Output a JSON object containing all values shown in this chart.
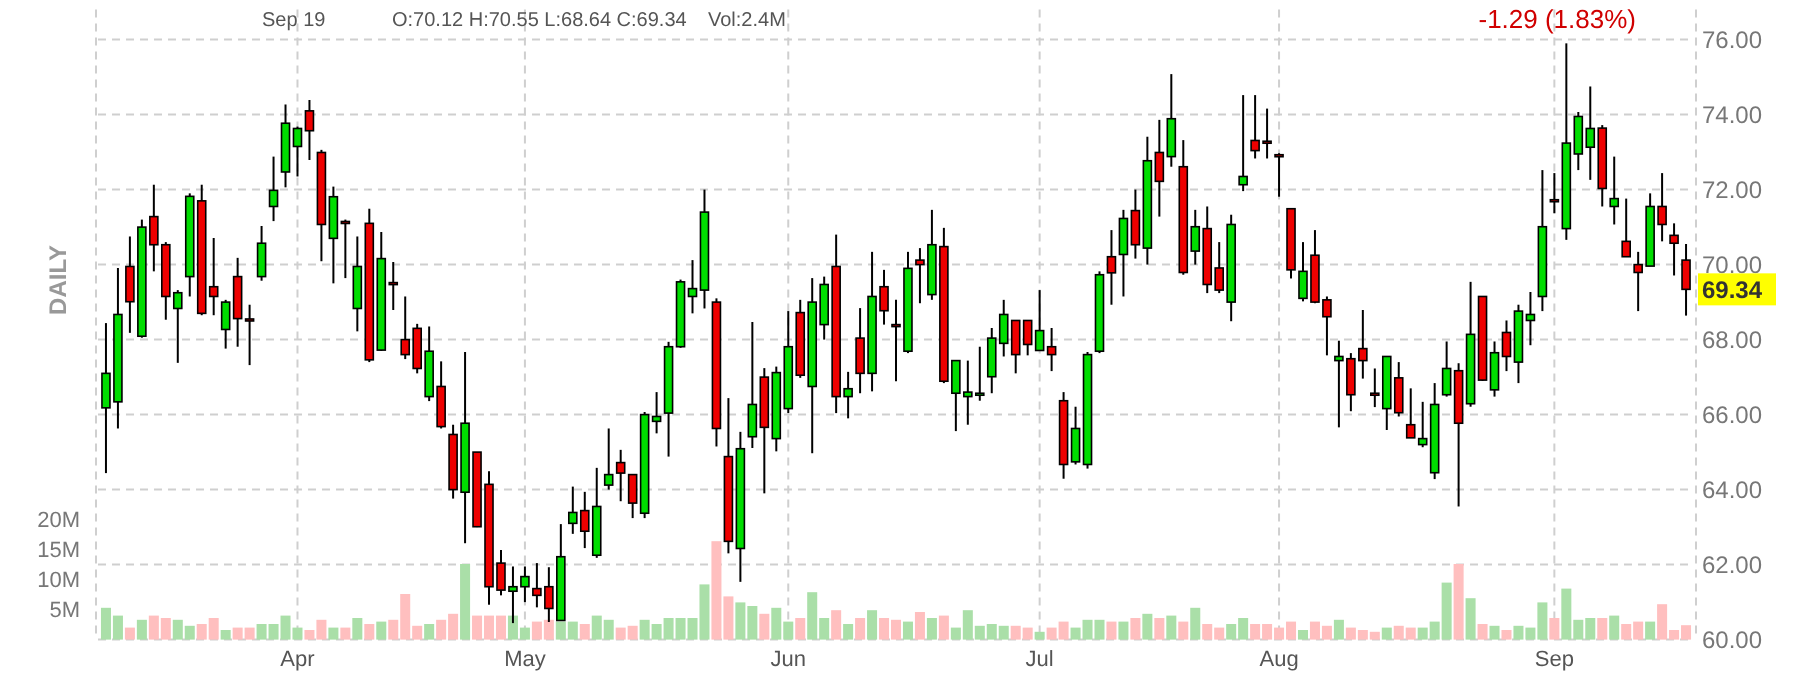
{
  "chart_data": {
    "type": "candlestick",
    "grid": true,
    "categories": [
      null,
      null,
      null,
      null,
      null,
      null,
      null,
      null,
      null,
      null,
      null,
      null,
      null,
      null,
      null,
      null,
      "Apr",
      null,
      null,
      null,
      null,
      null,
      null,
      null,
      null,
      null,
      null,
      null,
      null,
      null,
      null,
      null,
      null,
      null,
      null,
      "May",
      null,
      null,
      null,
      null,
      null,
      null,
      null,
      null,
      null,
      null,
      null,
      null,
      null,
      null,
      null,
      null,
      null,
      null,
      null,
      null,
      null,
      "Jun",
      null,
      null,
      null,
      null,
      null,
      null,
      null,
      null,
      null,
      null,
      null,
      null,
      null,
      null,
      null,
      null,
      null,
      null,
      null,
      null,
      "Jul",
      null,
      null,
      null,
      null,
      null,
      null,
      null,
      null,
      null,
      null,
      null,
      null,
      null,
      null,
      null,
      null,
      null,
      null,
      null,
      "Aug",
      null,
      null,
      null,
      null,
      null,
      null,
      null,
      null,
      null,
      null,
      null,
      null,
      null,
      null,
      null,
      null,
      null,
      null,
      null,
      null,
      null,
      null,
      "Sep",
      null,
      null,
      null,
      null,
      null,
      null,
      null,
      null,
      null,
      null,
      null
    ],
    "ylim": [
      60,
      76
    ],
    "yticks": [
      {
        "value": 60,
        "label": "60.00"
      },
      {
        "value": 62,
        "label": "62.00"
      },
      {
        "value": 64,
        "label": "64.00"
      },
      {
        "value": 66,
        "label": "66.00"
      },
      {
        "value": 68,
        "label": "68.00"
      },
      {
        "value": 70,
        "label": "70.00"
      },
      {
        "value": 72,
        "label": "72.00"
      },
      {
        "value": 74,
        "label": "74.00"
      },
      {
        "value": 76,
        "label": "76.00"
      }
    ],
    "y2lim": [
      0,
      100
    ],
    "y2ticks": [
      {
        "value": 5,
        "label": "5M"
      },
      {
        "value": 10,
        "label": "10M"
      },
      {
        "value": 15,
        "label": "15M"
      },
      {
        "value": 20,
        "label": "20M"
      }
    ],
    "annotations": [
      "Sep 19",
      "O:70.12 H:70.55 L:68.64 C:69.34",
      "Vol:2.4M",
      "-1.29 (1.83%)",
      "DAILY",
      "69.34"
    ],
    "series": [
      {
        "ohlc": [
          [
            66.18,
            68.44,
            64.44,
            67.1
          ],
          [
            66.34,
            69.91,
            65.63,
            68.67
          ],
          [
            69.95,
            70.75,
            68.18,
            69.01
          ],
          [
            68.09,
            71.2,
            68.05,
            71.0
          ],
          [
            71.28,
            72.13,
            69.82,
            70.53
          ],
          [
            70.53,
            70.6,
            68.53,
            69.15
          ],
          [
            68.83,
            69.32,
            67.38,
            69.25
          ],
          [
            69.68,
            71.9,
            69.15,
            71.82
          ],
          [
            71.7,
            72.13,
            68.65,
            68.7
          ],
          [
            69.41,
            70.71,
            68.65,
            69.15
          ],
          [
            68.27,
            69.06,
            67.76,
            69.0
          ],
          [
            69.68,
            70.18,
            67.81,
            68.56
          ],
          [
            68.55,
            68.93,
            67.32,
            68.5
          ],
          [
            69.68,
            71.03,
            69.57,
            70.57
          ],
          [
            71.55,
            72.88,
            71.16,
            71.98
          ],
          [
            72.47,
            74.27,
            72.06,
            73.77
          ],
          [
            73.15,
            73.68,
            72.35,
            73.63
          ],
          [
            74.1,
            74.39,
            72.79,
            73.57
          ],
          [
            72.99,
            73.06,
            70.09,
            71.07
          ],
          [
            70.7,
            72.08,
            69.5,
            71.81
          ],
          [
            71.15,
            71.2,
            69.64,
            71.12
          ],
          [
            68.83,
            70.75,
            68.22,
            69.95
          ],
          [
            71.1,
            71.49,
            67.4,
            67.46
          ],
          [
            67.72,
            70.87,
            67.7,
            70.16
          ],
          [
            69.52,
            70.07,
            68.79,
            69.48
          ],
          [
            68.0,
            69.15,
            67.48,
            67.6
          ],
          [
            68.3,
            68.42,
            67.1,
            67.23
          ],
          [
            66.48,
            68.35,
            66.36,
            67.69
          ],
          [
            66.75,
            67.42,
            65.63,
            65.68
          ],
          [
            65.47,
            65.73,
            63.76,
            64.0
          ],
          [
            63.93,
            67.67,
            62.57,
            65.77
          ],
          [
            65.0,
            65.0,
            63.0,
            63.01
          ],
          [
            64.14,
            64.49,
            60.93,
            61.41
          ],
          [
            62.04,
            62.39,
            61.18,
            61.32
          ],
          [
            61.29,
            61.95,
            60.44,
            61.41
          ],
          [
            61.41,
            61.95,
            61.0,
            61.68
          ],
          [
            61.36,
            62.04,
            60.86,
            61.18
          ],
          [
            61.41,
            61.93,
            60.47,
            60.83
          ],
          [
            60.51,
            63.08,
            60.5,
            62.21
          ],
          [
            63.1,
            64.08,
            62.82,
            63.39
          ],
          [
            63.44,
            63.94,
            62.44,
            62.89
          ],
          [
            62.25,
            64.58,
            62.18,
            63.55
          ],
          [
            64.12,
            65.63,
            64.0,
            64.4
          ],
          [
            64.72,
            65.06,
            63.69,
            64.44
          ],
          [
            64.4,
            64.4,
            63.24,
            63.64
          ],
          [
            63.37,
            66.07,
            63.24,
            66.0
          ],
          [
            65.82,
            66.6,
            65.5,
            65.95
          ],
          [
            66.04,
            67.94,
            64.88,
            67.81
          ],
          [
            67.81,
            69.6,
            67.78,
            69.54
          ],
          [
            69.15,
            70.12,
            68.7,
            69.36
          ],
          [
            69.32,
            72.0,
            68.83,
            71.4
          ],
          [
            69.0,
            69.1,
            65.15,
            65.63
          ],
          [
            64.88,
            66.44,
            62.3,
            62.62
          ],
          [
            62.43,
            65.54,
            61.54,
            65.09
          ],
          [
            65.41,
            68.47,
            65.11,
            66.27
          ],
          [
            67.0,
            67.24,
            63.9,
            65.66
          ],
          [
            65.36,
            67.28,
            65.02,
            67.12
          ],
          [
            66.16,
            68.76,
            66.04,
            67.81
          ],
          [
            68.72,
            69.06,
            66.98,
            67.05
          ],
          [
            66.75,
            69.64,
            64.97,
            69.0
          ],
          [
            68.4,
            69.68,
            68.0,
            69.47
          ],
          [
            69.95,
            70.8,
            66.04,
            66.48
          ],
          [
            66.48,
            67.14,
            65.9,
            66.69
          ],
          [
            68.04,
            68.84,
            66.57,
            67.1
          ],
          [
            67.1,
            70.34,
            66.62,
            69.15
          ],
          [
            69.41,
            69.86,
            68.4,
            68.77
          ],
          [
            68.4,
            69.06,
            66.89,
            68.38
          ],
          [
            67.69,
            70.34,
            67.64,
            69.9
          ],
          [
            70.12,
            70.44,
            68.97,
            70.0
          ],
          [
            69.2,
            71.46,
            69.06,
            70.53
          ],
          [
            70.48,
            70.98,
            66.84,
            66.89
          ],
          [
            66.57,
            67.44,
            65.56,
            67.44
          ],
          [
            66.48,
            67.44,
            65.73,
            66.6
          ],
          [
            66.55,
            67.81,
            66.37,
            66.57
          ],
          [
            67.01,
            68.31,
            66.57,
            68.04
          ],
          [
            67.9,
            69.06,
            67.55,
            68.67
          ],
          [
            68.51,
            68.51,
            67.1,
            67.6
          ],
          [
            68.51,
            68.51,
            67.58,
            67.87
          ],
          [
            67.71,
            69.32,
            67.71,
            68.24
          ],
          [
            67.81,
            68.31,
            67.16,
            67.6
          ],
          [
            66.37,
            66.6,
            64.29,
            64.67
          ],
          [
            64.74,
            66.21,
            64.67,
            65.63
          ],
          [
            64.67,
            67.67,
            64.56,
            67.6
          ],
          [
            67.69,
            69.82,
            67.64,
            69.73
          ],
          [
            70.21,
            70.92,
            68.93,
            69.78
          ],
          [
            70.27,
            71.46,
            69.15,
            71.23
          ],
          [
            71.44,
            72.0,
            70.16,
            70.53
          ],
          [
            70.44,
            73.41,
            70.0,
            72.77
          ],
          [
            72.99,
            73.86,
            71.28,
            72.22
          ],
          [
            72.88,
            75.08,
            72.61,
            73.89
          ],
          [
            72.61,
            73.32,
            69.73,
            69.79
          ],
          [
            70.36,
            71.46,
            70.0,
            71.01
          ],
          [
            70.96,
            71.55,
            69.24,
            69.47
          ],
          [
            69.91,
            70.6,
            69.24,
            69.32
          ],
          [
            69.0,
            71.33,
            68.49,
            71.07
          ],
          [
            72.13,
            74.52,
            71.96,
            72.35
          ],
          [
            73.31,
            74.52,
            72.83,
            73.04
          ],
          [
            73.29,
            74.16,
            72.83,
            73.27
          ],
          [
            72.93,
            72.97,
            71.81,
            72.9
          ],
          [
            71.49,
            71.49,
            69.63,
            69.86
          ],
          [
            69.1,
            70.6,
            69.02,
            69.82
          ],
          [
            70.25,
            70.92,
            68.97,
            69.0
          ],
          [
            69.06,
            69.15,
            67.58,
            68.61
          ],
          [
            67.44,
            67.97,
            65.66,
            67.55
          ],
          [
            67.49,
            67.64,
            66.09,
            66.53
          ],
          [
            67.76,
            68.79,
            66.96,
            67.44
          ],
          [
            66.57,
            67.23,
            66.2,
            66.55
          ],
          [
            66.16,
            67.55,
            65.59,
            67.55
          ],
          [
            66.98,
            67.4,
            65.95,
            66.05
          ],
          [
            65.73,
            66.7,
            65.38,
            65.38
          ],
          [
            65.2,
            66.34,
            65.13,
            65.36
          ],
          [
            64.45,
            66.84,
            64.28,
            66.27
          ],
          [
            66.53,
            67.95,
            66.48,
            67.23
          ],
          [
            67.17,
            67.37,
            63.55,
            65.77
          ],
          [
            66.29,
            69.54,
            66.21,
            68.14
          ],
          [
            69.15,
            69.15,
            66.9,
            66.92
          ],
          [
            66.66,
            67.95,
            66.48,
            67.65
          ],
          [
            68.19,
            68.51,
            67.16,
            67.55
          ],
          [
            67.4,
            68.93,
            66.84,
            68.76
          ],
          [
            68.51,
            69.27,
            67.85,
            68.67
          ],
          [
            69.15,
            72.52,
            68.76,
            71.01
          ],
          [
            71.73,
            72.44,
            71.37,
            71.71
          ],
          [
            70.96,
            75.9,
            70.66,
            73.24
          ],
          [
            72.95,
            74.07,
            72.52,
            73.95
          ],
          [
            73.13,
            74.75,
            72.26,
            73.63
          ],
          [
            73.64,
            73.72,
            71.55,
            72.03
          ],
          [
            71.55,
            72.88,
            71.07,
            71.76
          ],
          [
            70.62,
            71.76,
            70.21,
            70.21
          ],
          [
            70.0,
            70.34,
            68.76,
            69.79
          ],
          [
            69.96,
            71.9,
            69.96,
            71.55
          ],
          [
            71.55,
            72.44,
            70.62,
            71.07
          ],
          [
            70.78,
            71.1,
            69.71,
            70.57
          ],
          [
            70.12,
            70.55,
            68.64,
            69.34
          ]
        ],
        "colors": [
          "#00dd00",
          "#00dd00",
          "#ee0000",
          "#00dd00",
          "#ee0000",
          "#ee0000",
          "#00dd00",
          "#00dd00",
          "#ee0000",
          "#ee0000",
          "#00dd00",
          "#ee0000",
          "#ee0000",
          "#00dd00",
          "#00dd00",
          "#00dd00",
          "#00dd00",
          "#ee0000",
          "#ee0000",
          "#00dd00",
          "#ee0000",
          "#00dd00",
          "#ee0000",
          "#00dd00",
          "#ee0000",
          "#ee0000",
          "#ee0000",
          "#00dd00",
          "#ee0000",
          "#ee0000",
          "#00dd00",
          "#ee0000",
          "#ee0000",
          "#ee0000",
          "#00dd00",
          "#00dd00",
          "#ee0000",
          "#ee0000",
          "#00dd00",
          "#00dd00",
          "#ee0000",
          "#00dd00",
          "#00dd00",
          "#ee0000",
          "#ee0000",
          "#00dd00",
          "#00dd00",
          "#00dd00",
          "#00dd00",
          "#00dd00",
          "#00dd00",
          "#ee0000",
          "#ee0000",
          "#00dd00",
          "#00dd00",
          "#ee0000",
          "#00dd00",
          "#00dd00",
          "#ee0000",
          "#00dd00",
          "#00dd00",
          "#ee0000",
          "#00dd00",
          "#ee0000",
          "#00dd00",
          "#ee0000",
          "#ee0000",
          "#00dd00",
          "#ee0000",
          "#00dd00",
          "#ee0000",
          "#00dd00",
          "#00dd00",
          "#00dd00",
          "#00dd00",
          "#00dd00",
          "#ee0000",
          "#ee0000",
          "#00dd00",
          "#ee0000",
          "#ee0000",
          "#00dd00",
          "#00dd00",
          "#00dd00",
          "#ee0000",
          "#00dd00",
          "#ee0000",
          "#00dd00",
          "#ee0000",
          "#00dd00",
          "#ee0000",
          "#00dd00",
          "#ee0000",
          "#ee0000",
          "#00dd00",
          "#00dd00",
          "#ee0000",
          "#ee0000",
          "#ee0000",
          "#ee0000",
          "#00dd00",
          "#ee0000",
          "#ee0000",
          "#00dd00",
          "#ee0000",
          "#ee0000",
          "#ee0000",
          "#00dd00",
          "#ee0000",
          "#ee0000",
          "#00dd00",
          "#00dd00",
          "#00dd00",
          "#ee0000",
          "#00dd00",
          "#ee0000",
          "#00dd00",
          "#ee0000",
          "#00dd00",
          "#00dd00",
          "#00dd00",
          "#ee0000",
          "#00dd00",
          "#00dd00",
          "#00dd00",
          "#ee0000",
          "#00dd00",
          "#ee0000",
          "#ee0000",
          "#00dd00",
          "#ee0000",
          "#ee0000",
          "#ee0000"
        ]
      },
      {
        "type": "bar",
        "axis": "y2",
        "values": [
          5.3,
          4,
          2,
          3.3,
          4,
          3.6,
          3.3,
          2.3,
          2.6,
          3.6,
          1.6,
          2,
          2,
          2.6,
          2.6,
          4,
          2,
          1.6,
          3.3,
          2,
          2,
          3.6,
          2.6,
          3,
          3.3,
          7.6,
          2.3,
          2.6,
          3.3,
          4.3,
          12.6,
          4,
          4,
          4,
          4,
          2,
          3,
          3.3,
          3,
          3,
          2.6,
          4,
          3.3,
          2,
          2.3,
          3.3,
          2.6,
          3.6,
          3.6,
          3.6,
          9.2,
          16.4,
          7.2,
          6.2,
          5.6,
          4.3,
          5.3,
          3,
          3.6,
          7.9,
          3.6,
          4.9,
          2.6,
          3.6,
          4.9,
          3.6,
          3.3,
          3,
          4.6,
          3.6,
          4,
          2,
          4.9,
          2.3,
          2.6,
          2.3,
          2.3,
          2,
          1.3,
          2,
          3,
          2,
          3.3,
          3.3,
          3,
          3,
          3.6,
          4.3,
          3.6,
          4,
          3,
          5.3,
          2.6,
          2,
          2.6,
          3.6,
          2.6,
          2.6,
          2,
          3,
          1.6,
          3,
          2.3,
          3.3,
          2,
          1.6,
          1.3,
          2,
          2.3,
          2,
          2,
          3,
          9.5,
          12.6,
          6.9,
          2.6,
          2.3,
          1.6,
          2.3,
          2,
          6.2,
          3.6,
          8.5,
          3.3,
          3.6,
          3.6,
          4,
          2.6,
          3,
          3,
          5.9,
          1.6,
          2.4
        ],
        "colors": [
          "#aadfa8",
          "#aadfa8",
          "#ffbfbf",
          "#aadfa8",
          "#ffbfbf",
          "#ffbfbf",
          "#aadfa8",
          "#aadfa8",
          "#ffbfbf",
          "#ffbfbf",
          "#aadfa8",
          "#ffbfbf",
          "#ffbfbf",
          "#aadfa8",
          "#aadfa8",
          "#aadfa8",
          "#aadfa8",
          "#ffbfbf",
          "#ffbfbf",
          "#aadfa8",
          "#ffbfbf",
          "#aadfa8",
          "#ffbfbf",
          "#aadfa8",
          "#ffbfbf",
          "#ffbfbf",
          "#ffbfbf",
          "#aadfa8",
          "#ffbfbf",
          "#ffbfbf",
          "#aadfa8",
          "#ffbfbf",
          "#ffbfbf",
          "#ffbfbf",
          "#aadfa8",
          "#aadfa8",
          "#ffbfbf",
          "#ffbfbf",
          "#aadfa8",
          "#aadfa8",
          "#ffbfbf",
          "#aadfa8",
          "#aadfa8",
          "#ffbfbf",
          "#ffbfbf",
          "#aadfa8",
          "#aadfa8",
          "#aadfa8",
          "#aadfa8",
          "#aadfa8",
          "#aadfa8",
          "#ffbfbf",
          "#ffbfbf",
          "#aadfa8",
          "#aadfa8",
          "#ffbfbf",
          "#aadfa8",
          "#aadfa8",
          "#ffbfbf",
          "#aadfa8",
          "#aadfa8",
          "#ffbfbf",
          "#aadfa8",
          "#ffbfbf",
          "#aadfa8",
          "#ffbfbf",
          "#ffbfbf",
          "#aadfa8",
          "#ffbfbf",
          "#aadfa8",
          "#ffbfbf",
          "#aadfa8",
          "#aadfa8",
          "#aadfa8",
          "#aadfa8",
          "#aadfa8",
          "#ffbfbf",
          "#ffbfbf",
          "#aadfa8",
          "#ffbfbf",
          "#ffbfbf",
          "#aadfa8",
          "#aadfa8",
          "#aadfa8",
          "#ffbfbf",
          "#aadfa8",
          "#ffbfbf",
          "#aadfa8",
          "#ffbfbf",
          "#aadfa8",
          "#ffbfbf",
          "#aadfa8",
          "#ffbfbf",
          "#ffbfbf",
          "#aadfa8",
          "#aadfa8",
          "#ffbfbf",
          "#ffbfbf",
          "#ffbfbf",
          "#ffbfbf",
          "#aadfa8",
          "#ffbfbf",
          "#ffbfbf",
          "#aadfa8",
          "#ffbfbf",
          "#ffbfbf",
          "#ffbfbf",
          "#aadfa8",
          "#ffbfbf",
          "#ffbfbf",
          "#aadfa8",
          "#aadfa8",
          "#aadfa8",
          "#ffbfbf",
          "#aadfa8",
          "#ffbfbf",
          "#aadfa8",
          "#ffbfbf",
          "#aadfa8",
          "#aadfa8",
          "#aadfa8",
          "#ffbfbf",
          "#aadfa8",
          "#aadfa8",
          "#aadfa8",
          "#ffbfbf",
          "#aadfa8",
          "#ffbfbf",
          "#ffbfbf",
          "#aadfa8",
          "#ffbfbf",
          "#ffbfbf",
          "#ffbfbf"
        ]
      }
    ]
  }
}
